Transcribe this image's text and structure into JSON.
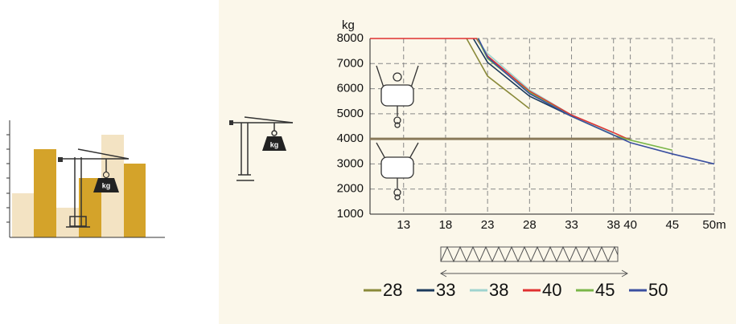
{
  "chart_data": {
    "type": "line",
    "ylabel": "kg",
    "xlim": [
      9,
      50
    ],
    "ylim": [
      1000,
      8000
    ],
    "xticks": [
      13,
      18,
      23,
      28,
      33,
      38,
      40,
      45,
      {
        "value": 50,
        "label": "50m"
      }
    ],
    "yticks": [
      1000,
      2000,
      3000,
      4000,
      5000,
      6000,
      7000,
      8000
    ],
    "grid": true,
    "reference_line": {
      "value": 4000,
      "color": "#8a7a5a",
      "x": [
        9,
        40
      ]
    },
    "series": [
      {
        "name": "28",
        "color": "#8a8a3a",
        "x": [
          20.5,
          23,
          28
        ],
        "values": [
          8000,
          6500,
          5200
        ]
      },
      {
        "name": "33",
        "color": "#1b3a5c",
        "x": [
          21.3,
          23,
          28,
          33
        ],
        "values": [
          8000,
          7050,
          5700,
          4900
        ]
      },
      {
        "name": "38",
        "color": "#9fd4cf",
        "x": [
          21.6,
          23,
          28,
          33,
          38
        ],
        "values": [
          8000,
          7400,
          5950,
          4950,
          4200
        ]
      },
      {
        "name": "40",
        "color": "#e03030",
        "x": [
          9,
          21.7,
          23,
          28,
          33,
          38,
          40
        ],
        "values": [
          8000,
          8000,
          7300,
          5900,
          4950,
          4250,
          3950
        ]
      },
      {
        "name": "45",
        "color": "#7ab648",
        "x": [
          21.8,
          23,
          28,
          33,
          38,
          40,
          45
        ],
        "values": [
          8000,
          7200,
          5850,
          4900,
          4150,
          3950,
          3550
        ]
      },
      {
        "name": "50",
        "color": "#3a4fa0",
        "x": [
          21.9,
          23,
          28,
          33,
          38,
          40,
          45,
          50
        ],
        "values": [
          8000,
          7250,
          5800,
          4900,
          4150,
          3850,
          3400,
          3000
        ]
      }
    ]
  }
}
